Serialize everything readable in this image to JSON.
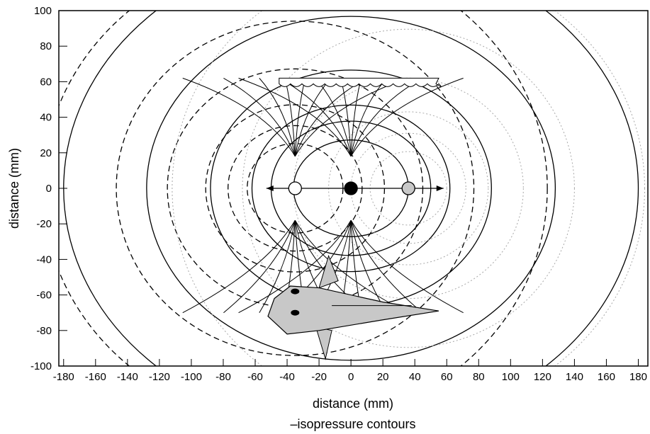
{
  "chart_data": {
    "type": "line",
    "title": "",
    "xlabel": "distance (mm)",
    "ylabel": "distance (mm)",
    "caption": "–isopressure contours",
    "xlim": [
      -183,
      186
    ],
    "ylim": [
      -100,
      100
    ],
    "xticks": [
      -180,
      -160,
      -140,
      -120,
      -100,
      -80,
      -60,
      -40,
      -20,
      0,
      20,
      40,
      60,
      80,
      100,
      120,
      140,
      160,
      180
    ],
    "yticks": [
      -100,
      -80,
      -60,
      -40,
      -20,
      0,
      20,
      40,
      60,
      80,
      100
    ],
    "grid": false,
    "dipole": {
      "axis_from": [
        -53,
        0
      ],
      "axis_to": [
        58,
        0
      ],
      "sources": [
        {
          "x": -35,
          "y": 0,
          "fill": "#ffffff"
        },
        {
          "x": 0,
          "y": 0,
          "fill": "#000000"
        },
        {
          "x": 36,
          "y": 0,
          "fill": "#c8c8c8"
        }
      ]
    },
    "series": [
      {
        "style": "solid",
        "color": "#000000",
        "center_x": 0,
        "radii_x": [
          36,
          50,
          62,
          88,
          128,
          180
        ],
        "aspect": 0.72
      },
      {
        "style": "dashed",
        "color": "#000000",
        "center_x": -35,
        "radii_x": [
          30,
          42,
          56,
          80,
          112,
          158
        ],
        "aspect": 0.8
      },
      {
        "style": "dotted",
        "color": "#a8a8a8",
        "center_x": 36,
        "radii_x": [
          24,
          36,
          50,
          72,
          104,
          148
        ],
        "aspect": 0.82
      }
    ],
    "field_lines": {
      "fan_top_y": 18,
      "fan_bottom_y": -18,
      "x_targets": [
        -44,
        -28,
        -14,
        -4,
        4,
        14,
        28,
        44
      ]
    },
    "plate": {
      "x_from": -45,
      "x_to": 55,
      "y": 62
    },
    "fish": {
      "body": [
        [
          -48,
          -62
        ],
        [
          -38,
          -55
        ],
        [
          -20,
          -56
        ],
        [
          20,
          -64
        ],
        [
          55,
          -69
        ],
        [
          20,
          -74
        ],
        [
          -20,
          -80
        ],
        [
          -40,
          -82
        ],
        [
          -52,
          -72
        ]
      ],
      "tail_tip": [
        55,
        -69
      ],
      "eyes": [
        [
          -35,
          -58
        ],
        [
          -35,
          -70
        ]
      ],
      "fin_top": [
        [
          -20,
          -56
        ],
        [
          -14,
          -38
        ],
        [
          -8,
          -52
        ]
      ],
      "fin_bottom": [
        [
          -22,
          -78
        ],
        [
          -16,
          -96
        ],
        [
          -12,
          -80
        ]
      ],
      "colors": {
        "body": "#c8c8c8",
        "outline": "#000000",
        "eye": "#000000"
      }
    }
  }
}
